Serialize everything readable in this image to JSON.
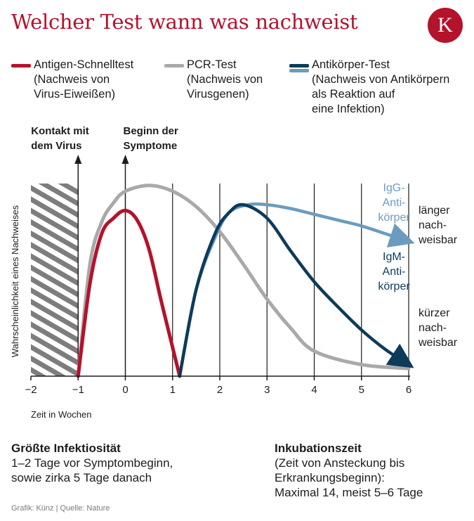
{
  "header": {
    "title": "Welcher Test wann was nachweist",
    "logo_letter": "K",
    "logo_color": "#b5122b"
  },
  "legend": [
    {
      "name": "Antigen-Schnelltest",
      "desc": [
        "(Nachweis von",
        "Virus-Eiweißen)"
      ],
      "color": "#b5122b"
    },
    {
      "name": "PCR-Test",
      "desc": [
        "(Nachweis von",
        "Virusgenen)"
      ],
      "color": "#a9a9a9"
    },
    {
      "name": "Antikörper-Test",
      "desc": [
        "(Nachweis von Antikörpern",
        "als Reaktion auf",
        "eine Infektion)"
      ],
      "color": "#0d3b5a",
      "color2": "#6b9cbf"
    }
  ],
  "chart_data": {
    "type": "line",
    "xlabel": "Zeit in Wochen",
    "ylabel": "Wahrscheinlichkeit eines Nachweises",
    "xlim": [
      -2,
      6
    ],
    "ylim": [
      0,
      1
    ],
    "xticks": [
      "−2",
      "−1",
      "0",
      "1",
      "2",
      "3",
      "4",
      "5",
      "6"
    ],
    "grid": "vertical lines at each week",
    "shaded_region": [
      -2,
      -1
    ],
    "markers": [
      {
        "x": -1,
        "label": [
          "Kontakt mit",
          "dem Virus"
        ]
      },
      {
        "x": 0,
        "label": [
          "Beginn der",
          "Symptome"
        ]
      }
    ],
    "series": [
      {
        "name": "Antigen-Schnelltest",
        "color": "#b5122b",
        "x": [
          -1,
          -0.75,
          -0.5,
          -0.25,
          0,
          0.25,
          0.5,
          0.75,
          1,
          1.15
        ],
        "y": [
          0,
          0.48,
          0.74,
          0.82,
          0.86,
          0.81,
          0.66,
          0.4,
          0.15,
          0
        ]
      },
      {
        "name": "PCR-Test",
        "color": "#a9a9a9",
        "x": [
          -1,
          -0.75,
          -0.5,
          -0.25,
          0,
          0.5,
          1,
          1.5,
          2,
          2.5,
          3,
          3.5,
          4,
          5,
          6
        ],
        "y": [
          0,
          0.58,
          0.8,
          0.9,
          0.96,
          0.99,
          0.96,
          0.88,
          0.75,
          0.58,
          0.4,
          0.25,
          0.13,
          0.06,
          0.04
        ]
      },
      {
        "name": "IgG-Antikörper",
        "color": "#6b9cbf",
        "x": [
          1.15,
          1.5,
          1.9,
          2.2,
          2.6,
          3,
          3.5,
          4,
          4.5,
          5,
          5.5,
          6
        ],
        "y": [
          0,
          0.45,
          0.72,
          0.85,
          0.89,
          0.89,
          0.87,
          0.84,
          0.81,
          0.78,
          0.74,
          0.7
        ]
      },
      {
        "name": "IgM-Antikörper",
        "color": "#0d3b5a",
        "x": [
          1.15,
          1.5,
          1.9,
          2.2,
          2.5,
          3,
          3.5,
          4,
          4.5,
          5,
          5.5,
          6
        ],
        "y": [
          0,
          0.45,
          0.74,
          0.85,
          0.89,
          0.82,
          0.65,
          0.49,
          0.36,
          0.24,
          0.14,
          0.06
        ]
      }
    ],
    "annotations": [
      {
        "text": [
          "IgG-",
          "Anti-",
          "körper"
        ],
        "color": "#6b9cbf"
      },
      {
        "text": [
          "IgM-",
          "Anti-",
          "körper"
        ],
        "color": "#0d3b5a"
      },
      {
        "text": [
          "länger",
          "nach-",
          "weisbar"
        ],
        "color": "#1d1d1b"
      },
      {
        "text": [
          "kürzer",
          "nach-",
          "weisbar"
        ],
        "color": "#1d1d1b"
      }
    ]
  },
  "notes": [
    {
      "heading": "Größte Infektiosität",
      "lines": [
        "1–2 Tage vor Symptombeginn,",
        "sowie zirka 5 Tage danach"
      ]
    },
    {
      "heading": "Inkubationszeit",
      "lines": [
        "(Zeit von Ansteckung bis",
        "Erkrankungsbeginn):",
        "Maximal 14, meist 5–6 Tage"
      ]
    }
  ],
  "credit": "Grafik: Künz | Quelle: Nature"
}
